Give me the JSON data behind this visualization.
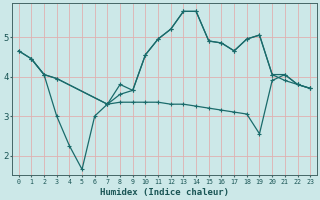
{
  "xlabel": "Humidex (Indice chaleur)",
  "bg_color": "#cce8e8",
  "line_color": "#1a6b6b",
  "grid_color": "#e0b0b0",
  "xlim": [
    -0.5,
    23.5
  ],
  "ylim": [
    1.5,
    5.85
  ],
  "yticks": [
    2,
    3,
    4,
    5
  ],
  "xticks": [
    0,
    1,
    2,
    3,
    4,
    5,
    6,
    7,
    8,
    9,
    10,
    11,
    12,
    13,
    14,
    15,
    16,
    17,
    18,
    19,
    20,
    21,
    22,
    23
  ],
  "line1_x": [
    0,
    1,
    2,
    3,
    7,
    8,
    9,
    10,
    11,
    12,
    13,
    14,
    15,
    16,
    17,
    18,
    19,
    20,
    21,
    22,
    23
  ],
  "line1_y": [
    4.65,
    4.45,
    4.05,
    3.95,
    3.3,
    3.55,
    3.65,
    4.55,
    4.95,
    5.2,
    5.65,
    5.65,
    4.9,
    4.85,
    4.65,
    4.95,
    5.05,
    4.05,
    3.9,
    3.8,
    3.7
  ],
  "line2_x": [
    1,
    2,
    3,
    4,
    5,
    6,
    7,
    8,
    9,
    10,
    11,
    12,
    13,
    14,
    15,
    16,
    17,
    18,
    19,
    20,
    21,
    22,
    23
  ],
  "line2_y": [
    4.45,
    4.05,
    3.0,
    2.25,
    1.65,
    3.0,
    3.3,
    3.35,
    3.35,
    3.35,
    3.35,
    3.3,
    3.3,
    3.25,
    3.2,
    3.15,
    3.1,
    3.05,
    2.55,
    3.9,
    4.05,
    3.8,
    3.7
  ],
  "line3_x": [
    0,
    1,
    2,
    3,
    7,
    8,
    9,
    10,
    11,
    12,
    13,
    14,
    15,
    16,
    17,
    18,
    19,
    20,
    21,
    22,
    23
  ],
  "line3_y": [
    4.65,
    4.45,
    4.05,
    3.95,
    3.3,
    3.8,
    3.65,
    4.55,
    4.95,
    5.2,
    5.65,
    5.65,
    4.9,
    4.85,
    4.65,
    4.95,
    5.05,
    4.05,
    4.05,
    3.8,
    3.7
  ]
}
